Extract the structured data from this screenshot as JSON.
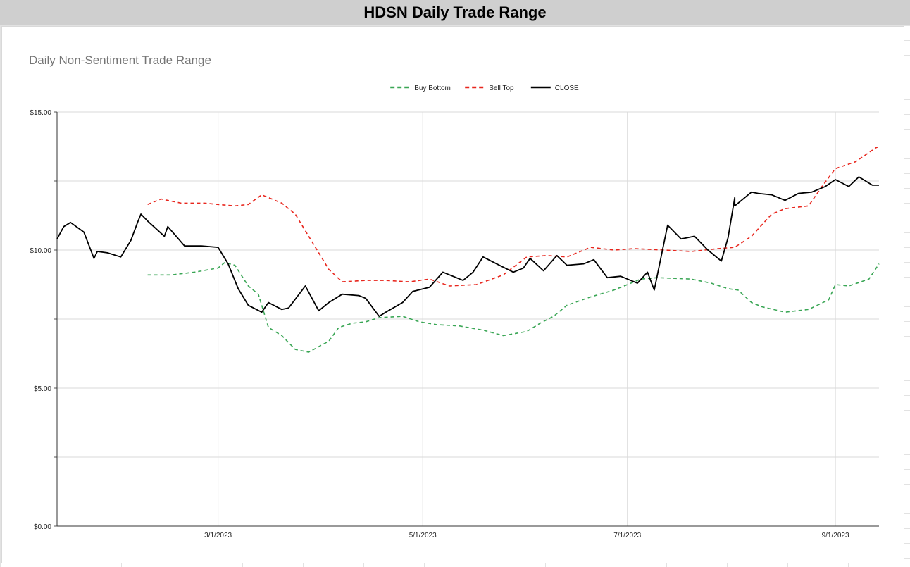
{
  "window": {
    "title": "HDSN Daily Trade Range"
  },
  "chart_data": {
    "type": "line",
    "title": "Daily Non-Sentiment Trade Range",
    "xlabel": "",
    "ylabel": "",
    "y_ticks": [
      "$15.00",
      "$10.00",
      "$5.00",
      "$0.00"
    ],
    "y_tick_values": [
      15,
      10,
      5,
      0
    ],
    "ylim": [
      0,
      15
    ],
    "x_ticks": [
      "3/1/2023",
      "5/1/2023",
      "7/1/2023",
      "9/1/2023"
    ],
    "x_tick_values": [
      "2023-03-01",
      "2023-05-01",
      "2023-07-01",
      "2023-09-01"
    ],
    "xlim": [
      "2023-01-12",
      "2023-09-14"
    ],
    "grid": true,
    "legend_position": "top",
    "series": [
      {
        "name": "Buy Bottom",
        "color": "#3aa655",
        "dash": "dashed",
        "x": [
          "2023-02-08",
          "2023-02-15",
          "2023-02-22",
          "2023-03-01",
          "2023-03-03",
          "2023-03-06",
          "2023-03-10",
          "2023-03-13",
          "2023-03-16",
          "2023-03-20",
          "2023-03-24",
          "2023-03-28",
          "2023-04-03",
          "2023-04-06",
          "2023-04-10",
          "2023-04-14",
          "2023-04-18",
          "2023-04-25",
          "2023-04-30",
          "2023-05-05",
          "2023-05-12",
          "2023-05-19",
          "2023-05-25",
          "2023-06-01",
          "2023-06-05",
          "2023-06-09",
          "2023-06-13",
          "2023-06-20",
          "2023-06-27",
          "2023-07-01",
          "2023-07-05",
          "2023-07-10",
          "2023-07-20",
          "2023-07-26",
          "2023-07-31",
          "2023-08-03",
          "2023-08-07",
          "2023-08-10",
          "2023-08-17",
          "2023-08-24",
          "2023-08-30",
          "2023-09-01",
          "2023-09-05",
          "2023-09-11",
          "2023-09-14"
        ],
        "values": [
          9.1,
          9.1,
          9.2,
          9.35,
          9.55,
          9.45,
          8.7,
          8.4,
          7.2,
          6.9,
          6.4,
          6.3,
          6.7,
          7.2,
          7.35,
          7.4,
          7.55,
          7.6,
          7.4,
          7.3,
          7.25,
          7.1,
          6.9,
          7.05,
          7.35,
          7.6,
          8.0,
          8.3,
          8.55,
          8.75,
          8.95,
          9.0,
          8.95,
          8.8,
          8.6,
          8.55,
          8.1,
          7.95,
          7.75,
          7.85,
          8.2,
          8.75,
          8.7,
          8.95,
          9.5
        ]
      },
      {
        "name": "Sell Top",
        "color": "#e8261d",
        "dash": "dashed",
        "x": [
          "2023-02-08",
          "2023-02-12",
          "2023-02-18",
          "2023-02-25",
          "2023-03-01",
          "2023-03-06",
          "2023-03-10",
          "2023-03-14",
          "2023-03-20",
          "2023-03-24",
          "2023-03-29",
          "2023-04-03",
          "2023-04-07",
          "2023-04-14",
          "2023-04-20",
          "2023-04-27",
          "2023-05-03",
          "2023-05-09",
          "2023-05-17",
          "2023-05-25",
          "2023-06-01",
          "2023-06-07",
          "2023-06-13",
          "2023-06-20",
          "2023-06-27",
          "2023-07-03",
          "2023-07-12",
          "2023-07-20",
          "2023-07-28",
          "2023-08-02",
          "2023-08-07",
          "2023-08-13",
          "2023-08-17",
          "2023-08-24",
          "2023-08-28",
          "2023-09-01",
          "2023-09-07",
          "2023-09-13",
          "2023-09-14"
        ],
        "values": [
          11.65,
          11.85,
          11.7,
          11.7,
          11.65,
          11.6,
          11.65,
          12.0,
          11.7,
          11.3,
          10.3,
          9.3,
          8.85,
          8.9,
          8.9,
          8.85,
          8.95,
          8.7,
          8.75,
          9.1,
          9.75,
          9.8,
          9.75,
          10.1,
          10.0,
          10.05,
          10.0,
          9.95,
          10.05,
          10.1,
          10.5,
          11.3,
          11.5,
          11.6,
          12.3,
          12.95,
          13.2,
          13.7,
          13.75
        ]
      },
      {
        "name": "CLOSE",
        "color": "#000000",
        "dash": "solid",
        "x": [
          "2023-01-12",
          "2023-01-14",
          "2023-01-16",
          "2023-01-20",
          "2023-01-23",
          "2023-01-24",
          "2023-01-27",
          "2023-01-31",
          "2023-02-03",
          "2023-02-05",
          "2023-02-06",
          "2023-02-08",
          "2023-02-13",
          "2023-02-14",
          "2023-02-19",
          "2023-02-24",
          "2023-03-01",
          "2023-03-04",
          "2023-03-07",
          "2023-03-10",
          "2023-03-14",
          "2023-03-16",
          "2023-03-20",
          "2023-03-22",
          "2023-03-27",
          "2023-03-31",
          "2023-04-03",
          "2023-04-07",
          "2023-04-12",
          "2023-04-14",
          "2023-04-18",
          "2023-04-20",
          "2023-04-25",
          "2023-04-28",
          "2023-05-03",
          "2023-05-07",
          "2023-05-10",
          "2023-05-13",
          "2023-05-16",
          "2023-05-19",
          "2023-05-23",
          "2023-05-28",
          "2023-05-31",
          "2023-06-02",
          "2023-06-06",
          "2023-06-10",
          "2023-06-13",
          "2023-06-18",
          "2023-06-21",
          "2023-06-25",
          "2023-06-29",
          "2023-07-04",
          "2023-07-07",
          "2023-07-09",
          "2023-07-13",
          "2023-07-17",
          "2023-07-21",
          "2023-07-25",
          "2023-07-29",
          "2023-07-31",
          "2023-08-02",
          "2023-08-02",
          "2023-08-07",
          "2023-08-09",
          "2023-08-13",
          "2023-08-17",
          "2023-08-21",
          "2023-08-25",
          "2023-08-29",
          "2023-09-01",
          "2023-09-05",
          "2023-09-08",
          "2023-09-12",
          "2023-09-14"
        ],
        "values": [
          10.4,
          10.85,
          11.0,
          10.65,
          9.7,
          9.95,
          9.9,
          9.75,
          10.35,
          11.0,
          11.3,
          11.05,
          10.5,
          10.85,
          10.15,
          10.15,
          10.1,
          9.5,
          8.6,
          8.0,
          7.75,
          8.1,
          7.85,
          7.9,
          8.7,
          7.8,
          8.1,
          8.4,
          8.35,
          8.25,
          7.6,
          7.75,
          8.1,
          8.5,
          8.65,
          9.2,
          9.05,
          8.9,
          9.2,
          9.75,
          9.5,
          9.2,
          9.35,
          9.7,
          9.25,
          9.8,
          9.45,
          9.5,
          9.65,
          9.0,
          9.05,
          8.8,
          9.2,
          8.55,
          10.9,
          10.4,
          10.5,
          10.0,
          9.6,
          10.45,
          11.9,
          11.6,
          12.1,
          12.05,
          12.0,
          11.8,
          12.05,
          12.1,
          12.3,
          12.55,
          12.3,
          12.65,
          12.35,
          12.35
        ]
      }
    ]
  }
}
